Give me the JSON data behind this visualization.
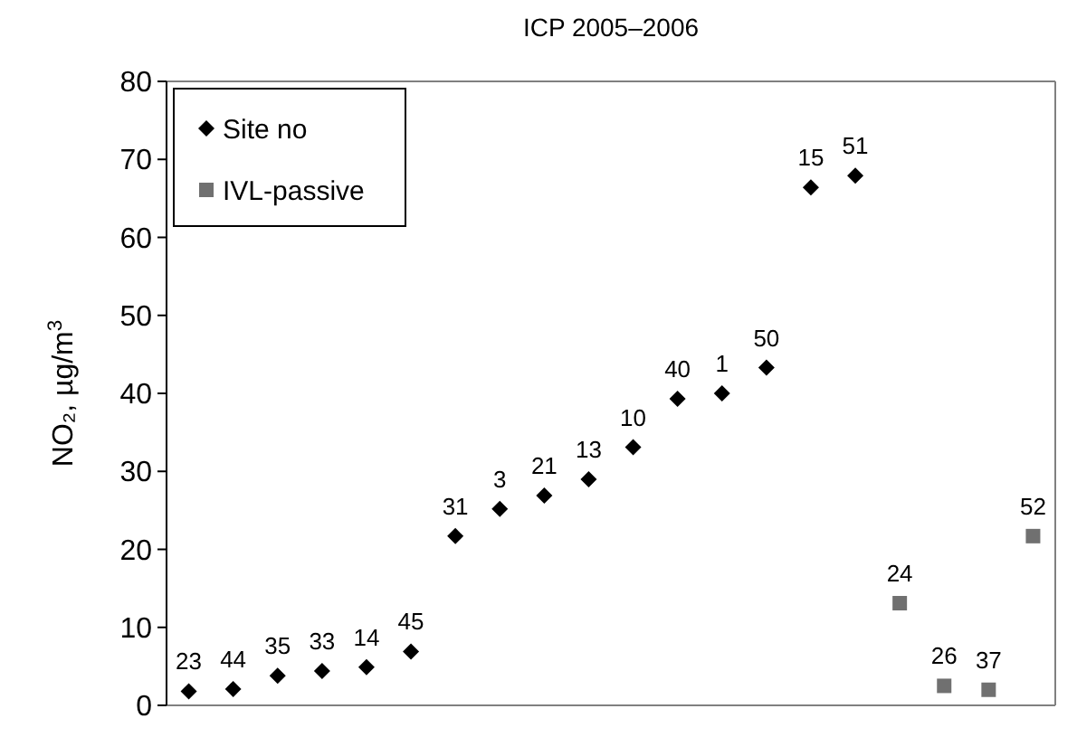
{
  "chart_data": {
    "type": "scatter",
    "title": "ICP 2005–2006",
    "ylabel": "NO₂, µg/m$^{3}$",
    "categories": [
      null,
      null,
      null,
      null,
      null,
      null,
      null,
      null,
      null,
      null,
      null,
      null,
      null,
      null,
      null,
      null,
      null,
      null,
      null,
      null
    ],
    "ylim": [
      0,
      80
    ],
    "yticks": [
      0,
      10,
      20,
      30,
      40,
      50,
      60,
      70,
      80
    ],
    "grid": false,
    "legend": "top left",
    "series": [
      {
        "name": "Site no",
        "color": "#000000",
        "marker": "diamond",
        "values": [
          1.8,
          2.1,
          3.8,
          4.4,
          4.9,
          6.9,
          21.7,
          25.2,
          26.9,
          29.0,
          33.1,
          39.3,
          40.0,
          43.3,
          66.4,
          67.9,
          null,
          null,
          null,
          null
        ]
      },
      {
        "name": "IVL-passive",
        "color": "#707070",
        "marker": "square",
        "values": [
          null,
          null,
          null,
          null,
          null,
          null,
          null,
          null,
          null,
          null,
          null,
          null,
          null,
          null,
          null,
          null,
          13.1,
          2.5,
          2.0,
          21.7
        ]
      }
    ],
    "annotations": [
      {
        "text": "23",
        "y": 1.8
      },
      {
        "text": "44",
        "y": 2.1
      },
      {
        "text": "35",
        "y": 3.8
      },
      {
        "text": "33",
        "y": 4.4
      },
      {
        "text": "14",
        "y": 4.9
      },
      {
        "text": "45",
        "y": 6.9
      },
      {
        "text": "31",
        "y": 21.7
      },
      {
        "text": "3",
        "y": 25.2
      },
      {
        "text": "21",
        "y": 26.9
      },
      {
        "text": "13",
        "y": 29.0
      },
      {
        "text": "10",
        "y": 33.1
      },
      {
        "text": "40",
        "y": 39.3
      },
      {
        "text": "1",
        "y": 40.0
      },
      {
        "text": "50",
        "y": 43.3
      },
      {
        "text": "15",
        "y": 66.4
      },
      {
        "text": "51",
        "y": 67.9
      },
      {
        "text": "24",
        "y": 13.1
      },
      {
        "text": "26",
        "y": 2.5
      },
      {
        "text": "37",
        "y": 2.0
      },
      {
        "text": "52",
        "y": 21.7
      }
    ]
  }
}
